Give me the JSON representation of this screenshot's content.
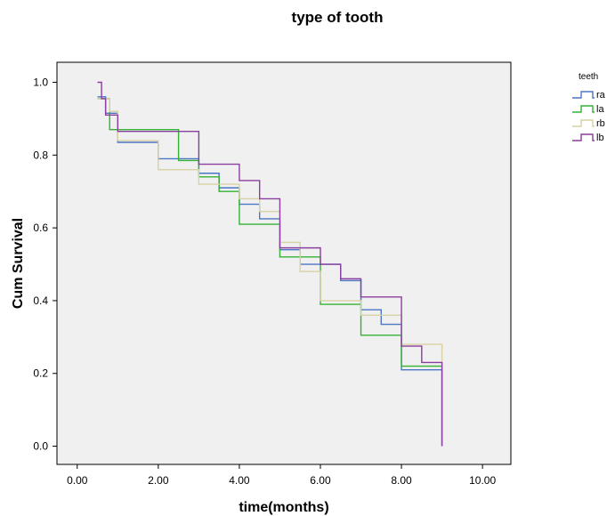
{
  "chart_data": {
    "type": "line",
    "title": "type of tooth",
    "xlabel": "time(months)",
    "ylabel": "Cum Survival",
    "xlim": [
      -0.5,
      10.7
    ],
    "ylim": [
      -0.05,
      1.055
    ],
    "x_ticks": [
      "0.00",
      "2.00",
      "4.00",
      "6.00",
      "8.00",
      "10.00"
    ],
    "y_ticks": [
      "0.0",
      "0.2",
      "0.4",
      "0.6",
      "0.8",
      "1.0"
    ],
    "grid": false,
    "background": "#f0f0f0",
    "legend": {
      "title": "teeth",
      "position": "right"
    },
    "series": [
      {
        "name": "ra",
        "color": "#4a76c6",
        "steps": [
          [
            0.5,
            0.96
          ],
          [
            0.7,
            0.915
          ],
          [
            1.0,
            0.835
          ],
          [
            2.0,
            0.79
          ],
          [
            3.0,
            0.75
          ],
          [
            3.5,
            0.71
          ],
          [
            4.0,
            0.665
          ],
          [
            4.5,
            0.625
          ],
          [
            5.0,
            0.54
          ],
          [
            5.5,
            0.5
          ],
          [
            6.5,
            0.455
          ],
          [
            7.0,
            0.375
          ],
          [
            7.5,
            0.335
          ],
          [
            8.0,
            0.21
          ],
          [
            9.0,
            0.0
          ]
        ]
      },
      {
        "name": "la",
        "color": "#33b233",
        "steps": [
          [
            0.5,
            0.955
          ],
          [
            0.8,
            0.87
          ],
          [
            2.5,
            0.785
          ],
          [
            3.0,
            0.74
          ],
          [
            3.5,
            0.7
          ],
          [
            4.0,
            0.61
          ],
          [
            5.0,
            0.52
          ],
          [
            6.0,
            0.39
          ],
          [
            7.0,
            0.305
          ],
          [
            8.0,
            0.22
          ],
          [
            9.0,
            0.0
          ]
        ]
      },
      {
        "name": "rb",
        "color": "#d7d1a4",
        "steps": [
          [
            0.5,
            0.955
          ],
          [
            0.8,
            0.92
          ],
          [
            1.0,
            0.84
          ],
          [
            2.0,
            0.76
          ],
          [
            3.0,
            0.72
          ],
          [
            4.0,
            0.68
          ],
          [
            4.5,
            0.645
          ],
          [
            5.0,
            0.56
          ],
          [
            5.5,
            0.48
          ],
          [
            6.0,
            0.4
          ],
          [
            7.0,
            0.36
          ],
          [
            8.0,
            0.28
          ],
          [
            9.0,
            0.0
          ]
        ]
      },
      {
        "name": "lb",
        "color": "#8a3e9e",
        "steps": [
          [
            0.5,
            1.0
          ],
          [
            0.6,
            0.955
          ],
          [
            0.7,
            0.91
          ],
          [
            1.0,
            0.865
          ],
          [
            3.0,
            0.775
          ],
          [
            4.0,
            0.73
          ],
          [
            4.5,
            0.68
          ],
          [
            5.0,
            0.545
          ],
          [
            6.0,
            0.5
          ],
          [
            6.5,
            0.46
          ],
          [
            7.0,
            0.41
          ],
          [
            8.0,
            0.275
          ],
          [
            8.5,
            0.23
          ],
          [
            9.0,
            0.0
          ]
        ]
      }
    ]
  }
}
